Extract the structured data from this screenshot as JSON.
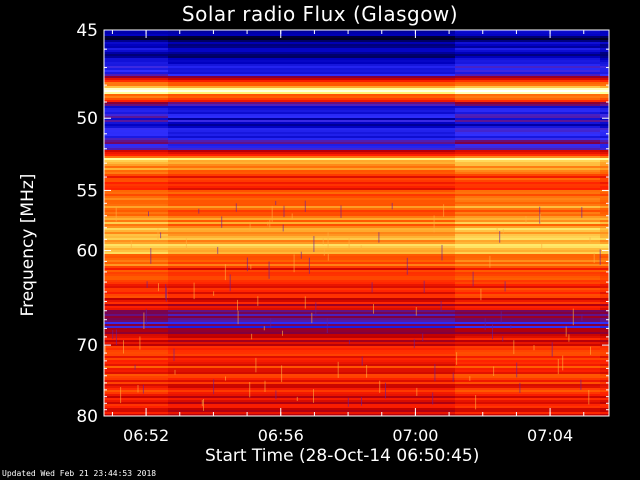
{
  "chart_data": {
    "type": "heatmap",
    "title": "Solar radio Flux (Glasgow)",
    "xlabel": "Start Time (28-Oct-14 06:50:45)",
    "ylabel": "Frequency [MHz]",
    "x_start": "06:50:45",
    "x_end": "07:05:45",
    "xticks": [
      "06:52",
      "06:56",
      "07:00",
      "07:04"
    ],
    "yticks": [
      45,
      50,
      55,
      60,
      70,
      80
    ],
    "ylim": [
      45,
      80
    ],
    "y_scale": "reciprocal",
    "colormap": [
      "#000020",
      "#0000c0",
      "#3030ff",
      "#800040",
      "#c00000",
      "#ff2000",
      "#ff6000",
      "#ffb030",
      "#ffff80",
      "#ffffff"
    ],
    "bands": [
      {
        "freq": 45.5,
        "level": 0.05
      },
      {
        "freq": 46.5,
        "level": 0.1
      },
      {
        "freq": 47.3,
        "level": 0.18
      },
      {
        "freq": 48.3,
        "level": 0.95
      },
      {
        "freq": 49.3,
        "level": 0.16
      },
      {
        "freq": 51.0,
        "level": 0.14
      },
      {
        "freq": 52.1,
        "level": 0.3
      },
      {
        "freq": 52.6,
        "level": 0.8
      },
      {
        "freq": 54.0,
        "level": 0.55
      },
      {
        "freq": 56.0,
        "level": 0.65
      },
      {
        "freq": 59.2,
        "level": 0.8
      },
      {
        "freq": 62.0,
        "level": 0.55
      },
      {
        "freq": 65.0,
        "level": 0.5
      },
      {
        "freq": 67.5,
        "level": 0.22
      },
      {
        "freq": 69.0,
        "level": 0.48
      },
      {
        "freq": 72.0,
        "level": 0.55
      },
      {
        "freq": 75.0,
        "level": 0.55
      },
      {
        "freq": 78.0,
        "level": 0.45
      },
      {
        "freq": 80.0,
        "level": 0.5
      }
    ]
  },
  "footer": "Updated Wed Feb 21 23:44:53 2018"
}
